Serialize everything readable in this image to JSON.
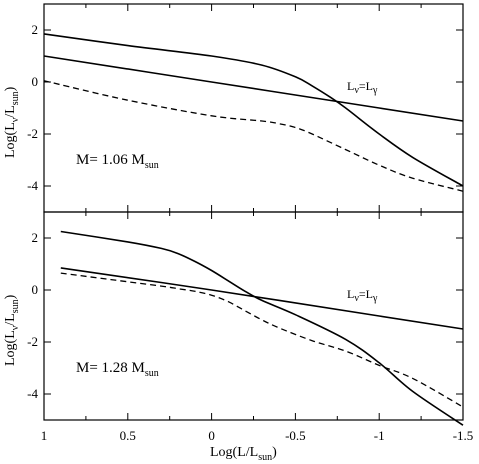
{
  "chart_data": {
    "type": "line",
    "xlabel": {
      "main": "Log(L/L",
      "sub": "sun",
      "close": ")"
    },
    "ylabel": {
      "main": "Log(L",
      "sub_nu": "ν",
      "mid": "/L",
      "sub": "sun",
      "close": ")"
    },
    "xlim": [
      1,
      -1.5
    ],
    "x_ticks": [
      "1",
      "0.5",
      "0",
      "-0.5",
      "-1",
      "-1.5"
    ],
    "panels": [
      {
        "mass_label": {
          "main": "M= 1.06 M",
          "sub": "sun"
        },
        "crossing_label": {
          "main": "L",
          "sub1": "ν",
          "mid": "=L",
          "sub2": "γ"
        },
        "ylim": [
          -5,
          3
        ],
        "y_ticks": [
          "2",
          "0",
          "-2",
          "-4"
        ],
        "series": [
          {
            "style": "solid",
            "x": [
              1,
              0.5,
              0,
              -0.3,
              -0.5,
              -0.6,
              -0.7,
              -0.8,
              -1,
              -1.2,
              -1.5
            ],
            "y": [
              1.85,
              1.4,
              1.0,
              0.65,
              0.2,
              -0.15,
              -0.55,
              -1.0,
              -2.0,
              -2.9,
              -4.0
            ]
          },
          {
            "style": "solid",
            "x": [
              1,
              0,
              -1,
              -1.5
            ],
            "y": [
              1.0,
              0.0,
              -1.0,
              -1.5
            ]
          },
          {
            "style": "dashed",
            "x": [
              1,
              0.5,
              0,
              -0.3,
              -0.4,
              -0.5,
              -0.6,
              -0.8,
              -1,
              -1.2,
              -1.5
            ],
            "y": [
              0.05,
              -0.7,
              -1.3,
              -1.5,
              -1.6,
              -1.75,
              -2.0,
              -2.6,
              -3.2,
              -3.7,
              -4.2
            ]
          }
        ]
      },
      {
        "mass_label": {
          "main": "M= 1.28 M",
          "sub": "sun"
        },
        "crossing_label": {
          "main": "L",
          "sub1": "ν",
          "mid": "=L",
          "sub2": "γ"
        },
        "ylim": [
          -5,
          3
        ],
        "y_ticks": [
          "2",
          "0",
          "-2",
          "-4"
        ],
        "series": [
          {
            "style": "solid",
            "x": [
              0.9,
              0.5,
              0.3,
              0.2,
              0.1,
              0,
              -0.1,
              -0.2,
              -0.3,
              -0.5,
              -0.8,
              -1,
              -1.2,
              -1.5
            ],
            "y": [
              2.25,
              1.85,
              1.6,
              1.4,
              1.1,
              0.75,
              0.35,
              -0.05,
              -0.4,
              -0.95,
              -1.9,
              -2.8,
              -3.9,
              -5.2
            ]
          },
          {
            "style": "solid",
            "x": [
              0.9,
              0,
              -1,
              -1.5
            ],
            "y": [
              0.85,
              0.0,
              -1.0,
              -1.5
            ]
          },
          {
            "style": "dashed",
            "x": [
              0.9,
              0.6,
              0.3,
              0.2,
              0.1,
              0,
              -0.1,
              -0.2,
              -0.3,
              -0.4,
              -0.6,
              -0.8,
              -1.0,
              -1.2,
              -1.5
            ],
            "y": [
              0.65,
              0.4,
              0.15,
              0.05,
              -0.05,
              -0.2,
              -0.45,
              -0.8,
              -1.15,
              -1.45,
              -1.95,
              -2.35,
              -2.9,
              -3.4,
              -4.5
            ]
          }
        ]
      }
    ]
  }
}
